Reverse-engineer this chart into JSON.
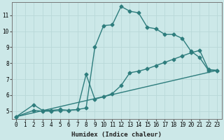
{
  "xlabel": "Humidex (Indice chaleur)",
  "ylabel": "",
  "bg_color": "#cce8e8",
  "grid_color": "#b8d8d8",
  "line_color": "#2e7d7d",
  "xlim": [
    -0.5,
    23.5
  ],
  "ylim": [
    4.5,
    11.8
  ],
  "xticks": [
    0,
    1,
    2,
    3,
    4,
    5,
    6,
    7,
    8,
    9,
    10,
    11,
    12,
    13,
    14,
    15,
    16,
    17,
    18,
    19,
    20,
    21,
    22,
    23
  ],
  "yticks": [
    5,
    6,
    7,
    8,
    9,
    10,
    11
  ],
  "series1_x": [
    0,
    2,
    3,
    4,
    5,
    6,
    7,
    8,
    9,
    10,
    11,
    12,
    13,
    14,
    15,
    16,
    17,
    18,
    19,
    20,
    21,
    22,
    23
  ],
  "series1_y": [
    4.65,
    5.4,
    5.05,
    5.05,
    5.1,
    5.05,
    5.1,
    5.2,
    9.0,
    10.35,
    10.4,
    11.55,
    11.25,
    11.15,
    10.25,
    10.15,
    9.8,
    9.8,
    9.55,
    8.75,
    8.35,
    7.55,
    7.55
  ],
  "series2_x": [
    0,
    2,
    3,
    4,
    5,
    6,
    7,
    8,
    9,
    10,
    11,
    12,
    13,
    14,
    15,
    16,
    17,
    18,
    19,
    20,
    21,
    22,
    23
  ],
  "series2_y": [
    4.65,
    5.05,
    5.0,
    5.0,
    5.05,
    5.05,
    5.1,
    7.3,
    5.75,
    5.9,
    6.1,
    6.6,
    7.4,
    7.5,
    7.65,
    7.85,
    8.05,
    8.25,
    8.45,
    8.65,
    8.8,
    7.6,
    7.55
  ],
  "series3_x": [
    0,
    23
  ],
  "series3_y": [
    4.65,
    7.55
  ],
  "marker": "D",
  "marker_size": 2.5,
  "linewidth": 1.0
}
